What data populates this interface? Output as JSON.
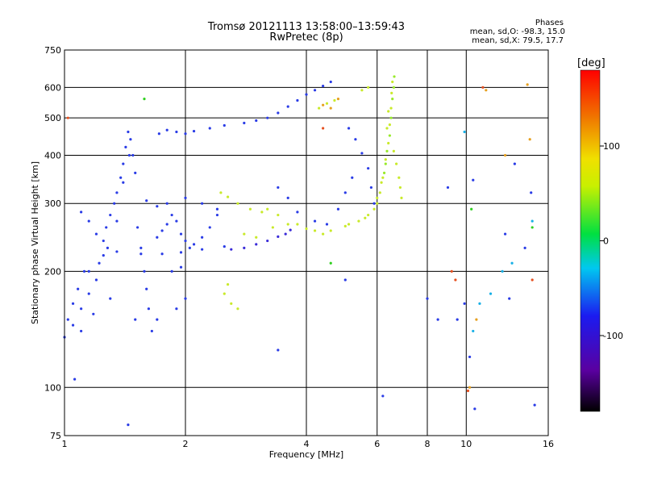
{
  "chart_data": {
    "type": "scatter",
    "title": "Tromsø 20121113 13:58:00–13:59:43",
    "subtitle": "RwPretec (8p)",
    "stats": {
      "heading": "Phases",
      "o_mode": "mean, sd,O: -98.3, 15.0",
      "x_mode": "mean, sd,X:  79.5, 17.7"
    },
    "xlabel": "Frequency [MHz]",
    "ylabel": "Stationary phase Virtual Height [km]",
    "x_scale": "log",
    "y_scale": "log",
    "xlim": [
      1,
      16
    ],
    "ylim": [
      75,
      750
    ],
    "x_ticks": [
      1,
      2,
      4,
      6,
      8,
      10,
      16
    ],
    "x_tick_labels": [
      "1",
      "2",
      "4",
      "6",
      "8",
      "10",
      "16"
    ],
    "y_ticks": [
      75,
      100,
      200,
      300,
      400,
      500,
      600,
      750
    ],
    "y_tick_labels": [
      "75",
      "100",
      "200",
      "300",
      "400",
      "500",
      "600",
      "750"
    ],
    "grid": true,
    "colorbar": {
      "label": "[deg]",
      "range": [
        -180,
        180
      ],
      "ticks": [
        100,
        0,
        -100
      ],
      "tick_labels": [
        "100",
        "0",
        "-100"
      ]
    },
    "series": [
      {
        "color": "#2a3ce6",
        "points": [
          [
            1.0,
            135
          ],
          [
            1.02,
            150
          ],
          [
            1.05,
            165
          ],
          [
            1.08,
            180
          ],
          [
            1.1,
            140
          ],
          [
            1.12,
            200
          ],
          [
            1.15,
            175
          ],
          [
            1.18,
            155
          ],
          [
            1.2,
            190
          ],
          [
            1.22,
            210
          ],
          [
            1.25,
            240
          ],
          [
            1.27,
            260
          ],
          [
            1.3,
            280
          ],
          [
            1.33,
            300
          ],
          [
            1.35,
            320
          ],
          [
            1.38,
            350
          ],
          [
            1.4,
            380
          ],
          [
            1.42,
            420
          ],
          [
            1.44,
            460
          ],
          [
            1.46,
            440
          ],
          [
            1.48,
            400
          ],
          [
            1.5,
            360
          ],
          [
            1.52,
            260
          ],
          [
            1.55,
            230
          ],
          [
            1.58,
            200
          ],
          [
            1.6,
            180
          ],
          [
            1.62,
            160
          ],
          [
            1.65,
            140
          ],
          [
            1.7,
            245
          ],
          [
            1.75,
            255
          ],
          [
            1.8,
            265
          ],
          [
            1.85,
            280
          ],
          [
            1.9,
            270
          ],
          [
            1.95,
            250
          ],
          [
            2.0,
            240
          ],
          [
            2.05,
            230
          ],
          [
            2.1,
            235
          ],
          [
            2.2,
            245
          ],
          [
            2.3,
            260
          ],
          [
            2.4,
            280
          ],
          [
            1.72,
            455
          ],
          [
            1.8,
            465
          ],
          [
            1.9,
            460
          ],
          [
            2.0,
            455
          ],
          [
            2.1,
            462
          ],
          [
            2.3,
            470
          ],
          [
            2.5,
            478
          ],
          [
            2.8,
            485
          ],
          [
            3.0,
            492
          ],
          [
            3.2,
            500
          ],
          [
            3.4,
            515
          ],
          [
            3.6,
            535
          ],
          [
            3.8,
            555
          ],
          [
            4.0,
            575
          ],
          [
            4.2,
            590
          ],
          [
            4.4,
            605
          ],
          [
            4.6,
            620
          ],
          [
            5.1,
            470
          ],
          [
            5.3,
            440
          ],
          [
            5.5,
            405
          ],
          [
            5.7,
            370
          ],
          [
            5.8,
            330
          ],
          [
            5.9,
            300
          ],
          [
            1.1,
            285
          ],
          [
            1.15,
            270
          ],
          [
            1.2,
            250
          ],
          [
            1.28,
            230
          ],
          [
            1.35,
            225
          ],
          [
            1.55,
            222
          ],
          [
            1.75,
            222
          ],
          [
            1.95,
            224
          ],
          [
            2.2,
            228
          ],
          [
            2.5,
            232
          ],
          [
            1.6,
            305
          ],
          [
            1.7,
            295
          ],
          [
            1.8,
            300
          ],
          [
            2.0,
            310
          ],
          [
            2.2,
            300
          ],
          [
            2.4,
            290
          ],
          [
            3.4,
            330
          ],
          [
            3.6,
            310
          ],
          [
            3.8,
            285
          ],
          [
            4.2,
            270
          ],
          [
            4.5,
            265
          ],
          [
            4.8,
            290
          ],
          [
            5.0,
            320
          ],
          [
            5.2,
            350
          ],
          [
            1.45,
            400
          ],
          [
            1.4,
            340
          ],
          [
            1.35,
            270
          ],
          [
            1.25,
            220
          ],
          [
            1.15,
            200
          ],
          [
            1.1,
            160
          ],
          [
            1.05,
            145
          ],
          [
            1.3,
            170
          ],
          [
            1.5,
            150
          ],
          [
            1.7,
            150
          ],
          [
            1.9,
            160
          ],
          [
            2.0,
            170
          ],
          [
            1.95,
            205
          ],
          [
            1.85,
            200
          ]
        ]
      },
      {
        "color": "#3a2bd8",
        "points": [
          [
            2.6,
            228
          ],
          [
            2.8,
            230
          ],
          [
            3.0,
            235
          ],
          [
            3.2,
            240
          ],
          [
            3.4,
            246
          ],
          [
            3.55,
            250
          ],
          [
            3.65,
            256
          ]
        ]
      },
      {
        "color": "#c9ea2a",
        "points": [
          [
            2.45,
            320
          ],
          [
            2.55,
            312
          ],
          [
            2.7,
            300
          ],
          [
            2.9,
            290
          ],
          [
            3.1,
            285
          ],
          [
            3.2,
            290
          ],
          [
            3.4,
            280
          ],
          [
            3.8,
            265
          ],
          [
            4.2,
            255
          ],
          [
            4.6,
            255
          ],
          [
            5.0,
            262
          ],
          [
            5.4,
            270
          ],
          [
            5.7,
            280
          ],
          [
            5.9,
            290
          ],
          [
            6.0,
            300
          ],
          [
            6.1,
            320
          ],
          [
            6.2,
            350
          ],
          [
            6.3,
            390
          ],
          [
            6.4,
            430
          ],
          [
            6.45,
            480
          ],
          [
            6.5,
            530
          ],
          [
            6.52,
            580
          ],
          [
            6.55,
            620
          ],
          [
            6.6,
            410
          ],
          [
            6.7,
            380
          ],
          [
            6.8,
            350
          ],
          [
            6.85,
            330
          ],
          [
            6.9,
            310
          ],
          [
            2.5,
            175
          ],
          [
            2.6,
            165
          ],
          [
            2.7,
            160
          ],
          [
            2.55,
            185
          ],
          [
            4.3,
            530
          ],
          [
            4.5,
            545
          ],
          [
            4.7,
            555
          ],
          [
            5.5,
            590
          ],
          [
            5.7,
            600
          ],
          [
            2.8,
            250
          ],
          [
            3.0,
            245
          ],
          [
            3.3,
            260
          ],
          [
            3.6,
            265
          ],
          [
            4.0,
            258
          ],
          [
            4.4,
            250
          ],
          [
            5.1,
            265
          ],
          [
            5.6,
            275
          ],
          [
            6.0,
            310
          ],
          [
            6.15,
            340
          ],
          [
            6.35,
            470
          ],
          [
            6.4,
            520
          ]
        ]
      },
      {
        "color": "#98ea2a",
        "points": [
          [
            6.25,
            360
          ],
          [
            6.3,
            380
          ],
          [
            6.35,
            410
          ],
          [
            6.45,
            450
          ],
          [
            6.5,
            500
          ],
          [
            6.55,
            560
          ],
          [
            6.6,
            600
          ],
          [
            6.62,
            640
          ]
        ]
      },
      {
        "color": "#e6a020",
        "points": [
          [
            4.4,
            540
          ],
          [
            4.6,
            530
          ],
          [
            4.8,
            560
          ],
          [
            10.2,
            100
          ],
          [
            10.6,
            150
          ],
          [
            11.2,
            590
          ],
          [
            12.5,
            400
          ],
          [
            14.2,
            610
          ],
          [
            14.4,
            440
          ]
        ]
      },
      {
        "color": "#e65020",
        "points": [
          [
            1.02,
            500
          ],
          [
            4.4,
            470
          ],
          [
            9.2,
            200
          ],
          [
            9.4,
            190
          ],
          [
            10.1,
            98
          ],
          [
            14.6,
            190
          ],
          [
            11.0,
            600
          ]
        ]
      },
      {
        "color": "#18b0e6",
        "points": [
          [
            10.8,
            165
          ],
          [
            11.5,
            175
          ],
          [
            12.3,
            200
          ],
          [
            13.0,
            210
          ],
          [
            14.6,
            270
          ],
          [
            10.4,
            140
          ],
          [
            9.9,
            460
          ]
        ]
      },
      {
        "color": "#2a3ce6",
        "points": [
          [
            1.06,
            105
          ],
          [
            1.44,
            80
          ],
          [
            3.4,
            125
          ],
          [
            5.0,
            190
          ],
          [
            6.2,
            95
          ],
          [
            8.0,
            170
          ],
          [
            9.5,
            150
          ],
          [
            9.9,
            165
          ],
          [
            10.2,
            120
          ],
          [
            10.4,
            345
          ],
          [
            10.5,
            88
          ],
          [
            12.5,
            250
          ],
          [
            12.8,
            170
          ],
          [
            13.2,
            380
          ],
          [
            14.0,
            230
          ],
          [
            14.5,
            320
          ],
          [
            14.8,
            90
          ],
          [
            9.0,
            330
          ],
          [
            8.5,
            150
          ]
        ]
      },
      {
        "color": "#30d020",
        "points": [
          [
            1.58,
            560
          ],
          [
            4.6,
            210
          ],
          [
            10.3,
            290
          ],
          [
            14.6,
            260
          ]
        ]
      }
    ]
  }
}
